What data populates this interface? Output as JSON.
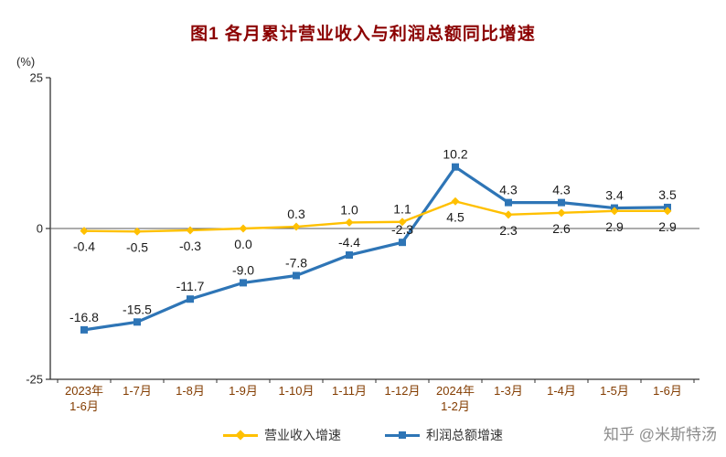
{
  "chart_data": {
    "type": "line",
    "title": "图1  各月累计营业收入与利润总额同比增速",
    "unit_label": "(%)",
    "ylim": [
      -25,
      25
    ],
    "yticks": [
      25,
      0,
      -25
    ],
    "grid": false,
    "legend_position": "bottom",
    "categories": [
      [
        "2023年",
        "1-6月"
      ],
      [
        "1-7月"
      ],
      [
        "1-8月"
      ],
      [
        "1-9月"
      ],
      [
        "1-10月"
      ],
      [
        "1-11月"
      ],
      [
        "1-12月"
      ],
      [
        "2024年",
        "1-2月"
      ],
      [
        "1-3月"
      ],
      [
        "1-4月"
      ],
      [
        "1-5月"
      ],
      [
        "1-6月"
      ]
    ],
    "series": [
      {
        "name": "营业收入增速",
        "color": "#FFC000",
        "marker": "diamond",
        "values": [
          -0.4,
          -0.5,
          -0.3,
          0.0,
          0.3,
          1.0,
          1.1,
          4.5,
          2.3,
          2.6,
          2.9,
          2.9
        ],
        "label_placement": [
          "below",
          "below",
          "below",
          "below",
          "above",
          "above",
          "above",
          "below",
          "below",
          "below",
          "below",
          "below"
        ]
      },
      {
        "name": "利润总额增速",
        "color": "#2E75B6",
        "marker": "square",
        "values": [
          -16.8,
          -15.5,
          -11.7,
          -9.0,
          -7.8,
          -4.4,
          -2.3,
          10.2,
          4.3,
          4.3,
          3.4,
          3.5
        ],
        "label_placement": [
          "above",
          "above",
          "above",
          "above",
          "above",
          "above",
          "above",
          "above",
          "above",
          "above",
          "above",
          "above"
        ]
      }
    ]
  },
  "watermark": {
    "text": "知乎 @米斯特汤"
  },
  "colors": {
    "title": "#8B0000",
    "axis": "#333333",
    "zero_line": "#595959",
    "x_labels": "#833C00",
    "y_labels": "#262626",
    "data_labels": "#1a1a1a",
    "watermark": "#8c8c8c"
  }
}
